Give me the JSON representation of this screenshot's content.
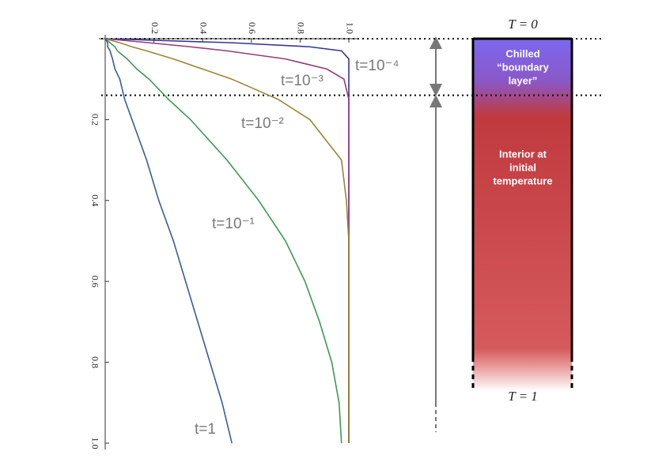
{
  "chart_data": {
    "type": "line",
    "y": [
      0,
      0.01,
      0.02,
      0.03,
      0.05,
      0.075,
      0.1,
      0.15,
      0.2,
      0.3,
      0.4,
      0.5,
      0.6,
      0.7,
      0.8,
      0.9,
      1.0
    ],
    "series": [
      {
        "name": "t=10⁻⁴",
        "color": "#35359a",
        "values": [
          0,
          0.52,
          0.84,
          0.97,
          1,
          1,
          1,
          1,
          1,
          1,
          1,
          1,
          1,
          1,
          1,
          1,
          1
        ]
      },
      {
        "name": "t=10⁻³",
        "color": "#9a3a7e",
        "values": [
          0,
          0.18,
          0.35,
          0.5,
          0.74,
          0.91,
          0.98,
          1,
          1,
          1,
          1,
          1,
          1,
          1,
          1,
          1,
          1
        ]
      },
      {
        "name": "t=10⁻²",
        "color": "#9a8633",
        "values": [
          0,
          0.06,
          0.11,
          0.17,
          0.28,
          0.4,
          0.52,
          0.71,
          0.84,
          0.97,
          0.99,
          1,
          1,
          1,
          1,
          1,
          1
        ]
      },
      {
        "name": "t=10⁻¹",
        "color": "#3a9a55",
        "values": [
          0,
          0.02,
          0.04,
          0.05,
          0.09,
          0.13,
          0.18,
          0.26,
          0.35,
          0.5,
          0.63,
          0.74,
          0.82,
          0.88,
          0.93,
          0.96,
          0.97
        ]
      },
      {
        "name": "t=1",
        "color": "#3a5a9e",
        "values": [
          0,
          0.01,
          0.01,
          0.02,
          0.03,
          0.04,
          0.06,
          0.08,
          0.11,
          0.17,
          0.22,
          0.28,
          0.33,
          0.38,
          0.43,
          0.48,
          0.52
        ]
      }
    ],
    "xlim": [
      0,
      1
    ],
    "xticks": [
      0.2,
      0.4,
      0.6,
      0.8,
      {
        "value": 1,
        "label": "1.0"
      }
    ],
    "ylim": [
      0,
      1
    ],
    "yticks": [
      0.2,
      0.4,
      0.6,
      0.8,
      {
        "value": 1,
        "label": "1.0"
      }
    ],
    "y_inverted": true,
    "boundary_depth": 0.14,
    "top_label": "T = 0",
    "bottom_label": "T = 1",
    "chilled_label": [
      "Chilled",
      "“boundary",
      "layer”"
    ],
    "interior_label": [
      "Interior at",
      "initial",
      "temperature"
    ]
  }
}
